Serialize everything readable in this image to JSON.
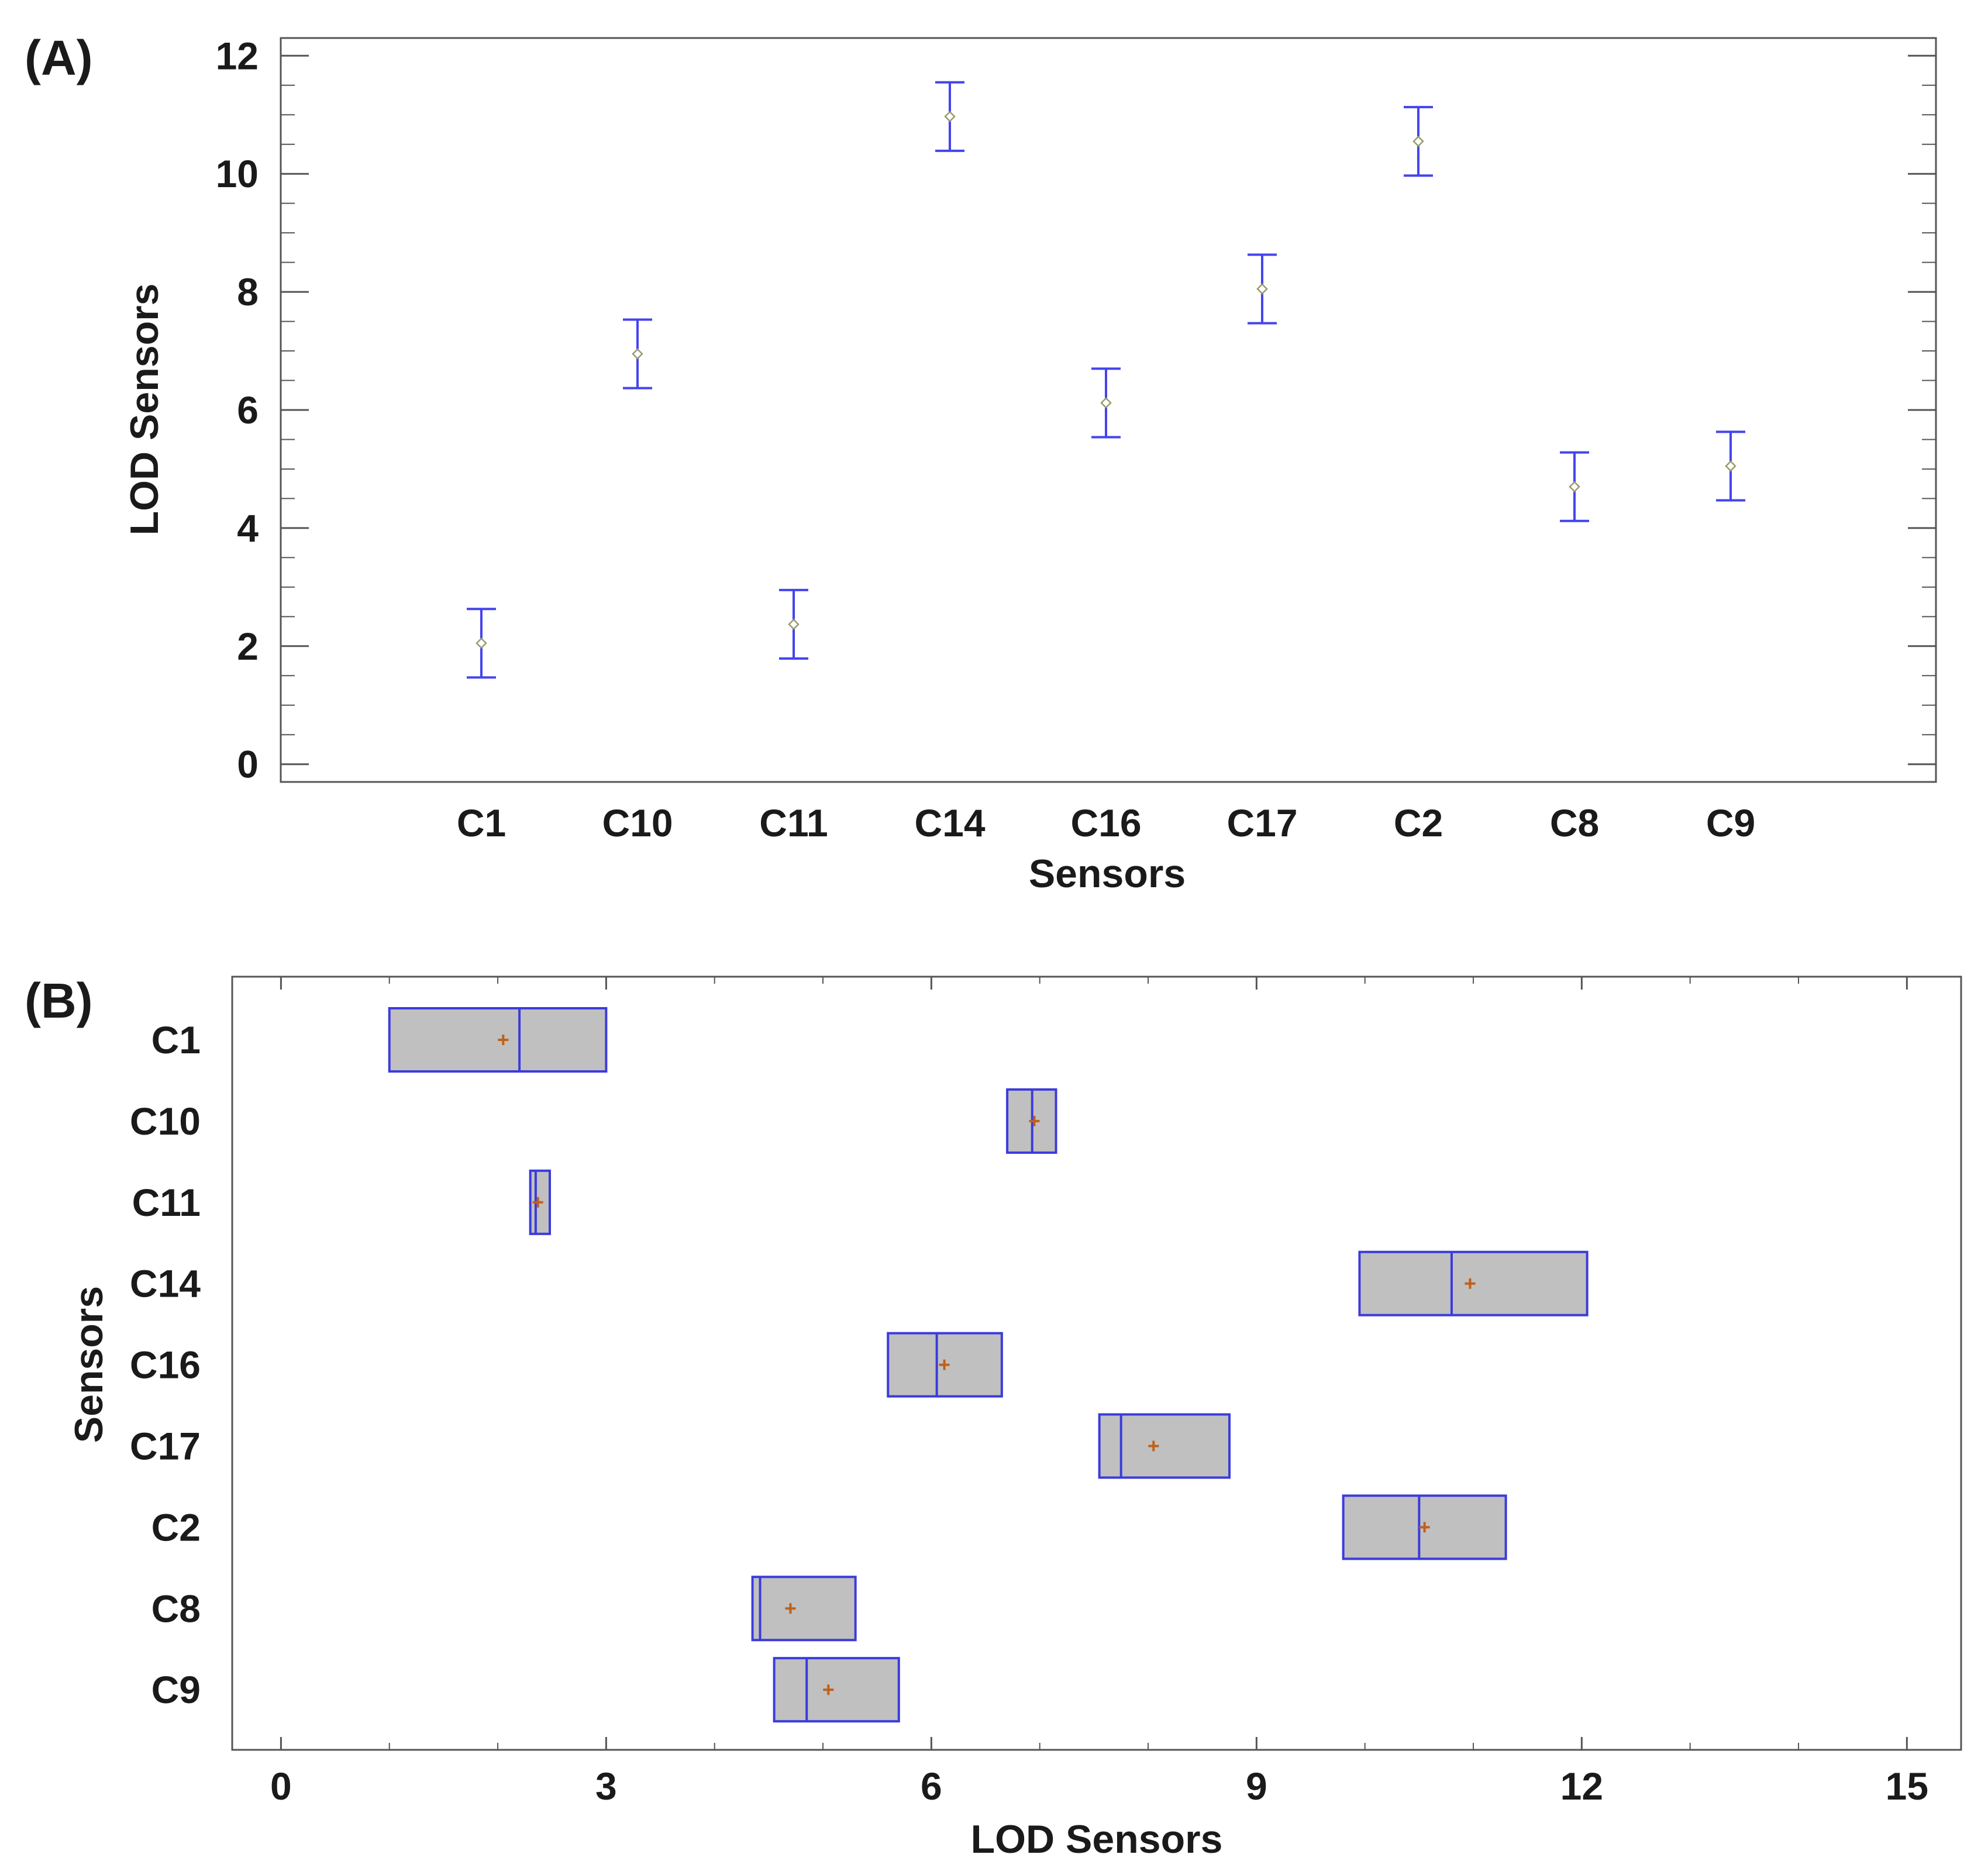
{
  "chart_data": [
    {
      "panel": "(A)",
      "type": "scatter",
      "subtype": "means with error bars",
      "categories": [
        "C1",
        "C10",
        "C11",
        "C14",
        "C16",
        "C17",
        "C2",
        "C8",
        "C9"
      ],
      "means": [
        2.05,
        6.95,
        2.37,
        10.97,
        6.12,
        8.05,
        10.55,
        4.7,
        5.05
      ],
      "lower": [
        1.47,
        6.37,
        1.79,
        10.39,
        5.54,
        7.47,
        9.97,
        4.12,
        4.47
      ],
      "upper": [
        2.63,
        7.53,
        2.95,
        11.55,
        6.7,
        8.63,
        11.13,
        5.28,
        5.63
      ],
      "xlabel": "Sensors",
      "ylabel": "LOD Sensors",
      "ylim": [
        -0.3,
        12.3
      ],
      "yticks": [
        0,
        2,
        4,
        6,
        8,
        10,
        12
      ],
      "ytick_labels": [
        "0",
        "2",
        "4",
        "6",
        "8",
        "10",
        "12"
      ],
      "colors": {
        "errorbar": "#4444ee",
        "marker": "#9a9a6e",
        "frame": "#555555"
      }
    },
    {
      "panel": "(B)",
      "type": "box",
      "orientation": "horizontal",
      "categories": [
        "C1",
        "C10",
        "C11",
        "C14",
        "C16",
        "C17",
        "C2",
        "C8",
        "C9"
      ],
      "q1": [
        1.0,
        6.7,
        2.3,
        9.95,
        5.6,
        7.55,
        9.8,
        4.35,
        4.55
      ],
      "median": [
        2.2,
        6.93,
        2.35,
        10.8,
        6.05,
        7.75,
        10.5,
        4.42,
        4.85
      ],
      "q3": [
        3.0,
        7.15,
        2.48,
        12.05,
        6.65,
        8.75,
        11.3,
        5.3,
        5.7
      ],
      "mean": [
        2.05,
        6.95,
        2.37,
        10.97,
        6.12,
        8.05,
        10.55,
        4.7,
        5.05
      ],
      "xlabel": "LOD Sensors",
      "ylabel": "Sensors",
      "xlim": [
        -0.45,
        15.5
      ],
      "xticks": [
        0,
        3,
        6,
        9,
        12,
        15
      ],
      "xtick_labels": [
        "0",
        "3",
        "6",
        "9",
        "12",
        "15"
      ],
      "colors": {
        "box_fill": "#c0c0c0",
        "box_edge": "#3b3bdd",
        "mean_marker": "#c0601a",
        "frame": "#555555"
      }
    }
  ]
}
